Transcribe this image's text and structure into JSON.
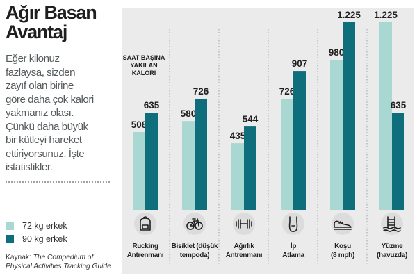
{
  "title_line1": "Ağır Basan",
  "title_line2": "Avantaj",
  "description": "Eğer kilonuz\nfazlaysa, sizden\nzayıf olan birine\ngöre daha çok kalori\nyakmanız olası.\nÇünkü daha büyük\nbir kütleyi hareket\nettiriyorsunuz. İşte\nistatistikler.",
  "source_prefix": "Kaynak: ",
  "source_title": "The Compedium of Physical Activities Tracking Guide",
  "colors": {
    "light": "#a9d8d3",
    "dark": "#0e6e7c",
    "panel": "#ebebeb",
    "divider": "#9aa3a8",
    "icon_bg": "#dcdcdc"
  },
  "chart_data": {
    "type": "bar",
    "unit_label": [
      "SAAT BAŞINA",
      "YAKILAN",
      "KALORİ"
    ],
    "categories": [
      {
        "lines": [
          "Rucking",
          "Antrenmanı"
        ],
        "icon": "backpack-icon"
      },
      {
        "lines": [
          "Bisiklet (düşük",
          "tempoda)"
        ],
        "icon": "bicycle-icon"
      },
      {
        "lines": [
          "Ağırlık",
          "Antrenmanı"
        ],
        "icon": "dumbbell-icon"
      },
      {
        "lines": [
          "İp",
          "Atlama"
        ],
        "icon": "jump-rope-icon"
      },
      {
        "lines": [
          "Koşu",
          "(8 mph)"
        ],
        "icon": "running-shoe-icon"
      },
      {
        "lines": [
          "Yüzme",
          "(havuzda)"
        ],
        "icon": "swimming-pool-icon"
      }
    ],
    "series": [
      {
        "name": "72 kg erkek",
        "values": [
          508,
          580,
          435,
          726,
          980,
          1225
        ],
        "labels": [
          "508",
          "580",
          "435",
          "726",
          "980",
          "1.225"
        ]
      },
      {
        "name": "90 kg erkek",
        "values": [
          635,
          726,
          544,
          907,
          1225,
          635
        ],
        "labels": [
          "635",
          "726",
          "544",
          "907",
          "1.225",
          "635"
        ]
      }
    ],
    "ylim": [
      0,
      1225
    ]
  }
}
